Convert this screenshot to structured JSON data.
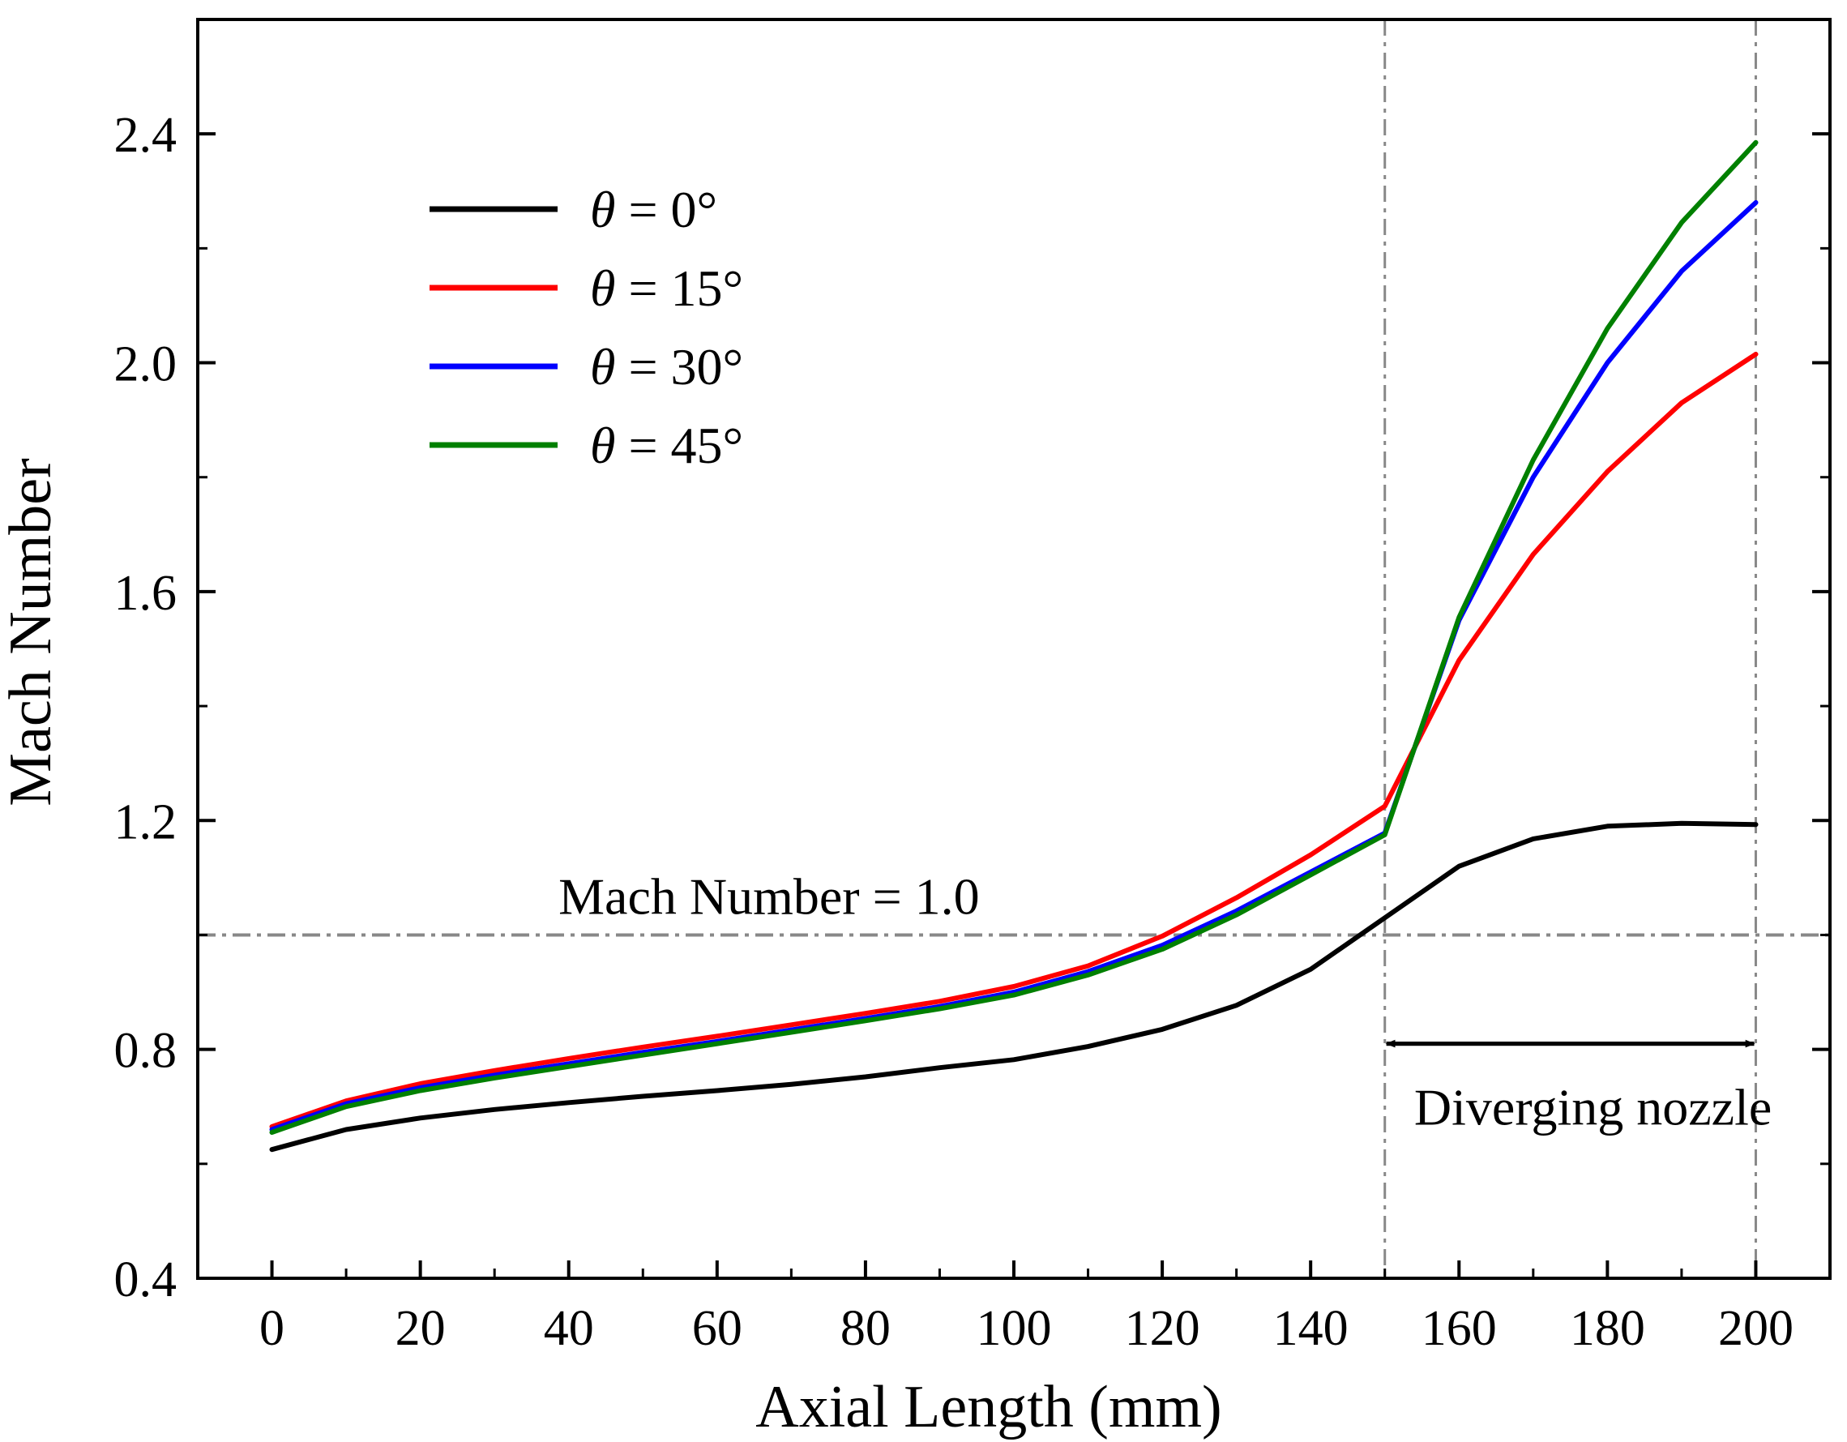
{
  "chart_data": {
    "type": "line",
    "xlabel": "Axial Length (mm)",
    "ylabel": "Mach Number",
    "xlim": [
      -10,
      210
    ],
    "ylim": [
      0.4,
      2.6
    ],
    "xticks": [
      0,
      20,
      40,
      60,
      80,
      100,
      120,
      140,
      160,
      180,
      200
    ],
    "yticks": [
      0.4,
      0.8,
      1.2,
      1.6,
      2.0,
      2.4
    ],
    "xtick_labels": [
      "0",
      "20",
      "40",
      "60",
      "80",
      "100",
      "120",
      "140",
      "160",
      "180",
      "200"
    ],
    "ytick_labels": [
      "0.4",
      "0.8",
      "1.2",
      "1.6",
      "2.0",
      "2.4"
    ],
    "grid": false,
    "legend_placement": "top-left",
    "series": [
      {
        "name": "θ = 0°",
        "color": "#000000",
        "x": [
          0,
          10,
          20,
          30,
          40,
          50,
          60,
          70,
          80,
          90,
          100,
          110,
          120,
          130,
          140,
          150,
          160,
          170,
          180,
          190,
          200
        ],
        "y": [
          0.625,
          0.66,
          0.68,
          0.695,
          0.707,
          0.718,
          0.728,
          0.739,
          0.752,
          0.768,
          0.782,
          0.805,
          0.835,
          0.877,
          0.94,
          1.03,
          1.12,
          1.168,
          1.19,
          1.195,
          1.193
        ]
      },
      {
        "name": "θ = 15°",
        "color": "#ff0000",
        "x": [
          0,
          10,
          20,
          30,
          40,
          50,
          60,
          70,
          80,
          90,
          100,
          110,
          120,
          130,
          140,
          150,
          160,
          170,
          180,
          190,
          200
        ],
        "y": [
          0.665,
          0.71,
          0.74,
          0.763,
          0.784,
          0.804,
          0.823,
          0.843,
          0.863,
          0.884,
          0.91,
          0.946,
          0.998,
          1.065,
          1.14,
          1.225,
          1.48,
          1.665,
          1.81,
          1.93,
          2.015
        ]
      },
      {
        "name": "θ = 30°",
        "color": "#0000ff",
        "x": [
          0,
          10,
          20,
          30,
          40,
          50,
          60,
          70,
          80,
          90,
          100,
          110,
          120,
          130,
          140,
          150,
          160,
          170,
          180,
          190,
          200
        ],
        "y": [
          0.66,
          0.705,
          0.733,
          0.755,
          0.775,
          0.795,
          0.814,
          0.834,
          0.854,
          0.875,
          0.9,
          0.936,
          0.982,
          1.042,
          1.11,
          1.178,
          1.55,
          1.8,
          2.0,
          2.16,
          2.28
        ]
      },
      {
        "name": "θ = 45°",
        "color": "#008000",
        "x": [
          0,
          10,
          20,
          30,
          40,
          50,
          60,
          70,
          80,
          90,
          100,
          110,
          120,
          130,
          140,
          150,
          160,
          170,
          180,
          190,
          200
        ],
        "y": [
          0.655,
          0.7,
          0.728,
          0.75,
          0.77,
          0.79,
          0.81,
          0.83,
          0.85,
          0.871,
          0.895,
          0.93,
          0.975,
          1.035,
          1.105,
          1.175,
          1.555,
          1.83,
          2.06,
          2.245,
          2.385
        ]
      }
    ],
    "reference_lines": {
      "horizontal": {
        "y": 1.0,
        "label": "Mach Number = 1.0",
        "color": "#888888"
      },
      "vertical": [
        {
          "x": 150,
          "color": "#888888"
        },
        {
          "x": 200,
          "color": "#888888"
        }
      ]
    },
    "annotation": {
      "text": "Diverging nozzle",
      "x_from": 150,
      "x_to": 200,
      "y": 0.81
    }
  }
}
